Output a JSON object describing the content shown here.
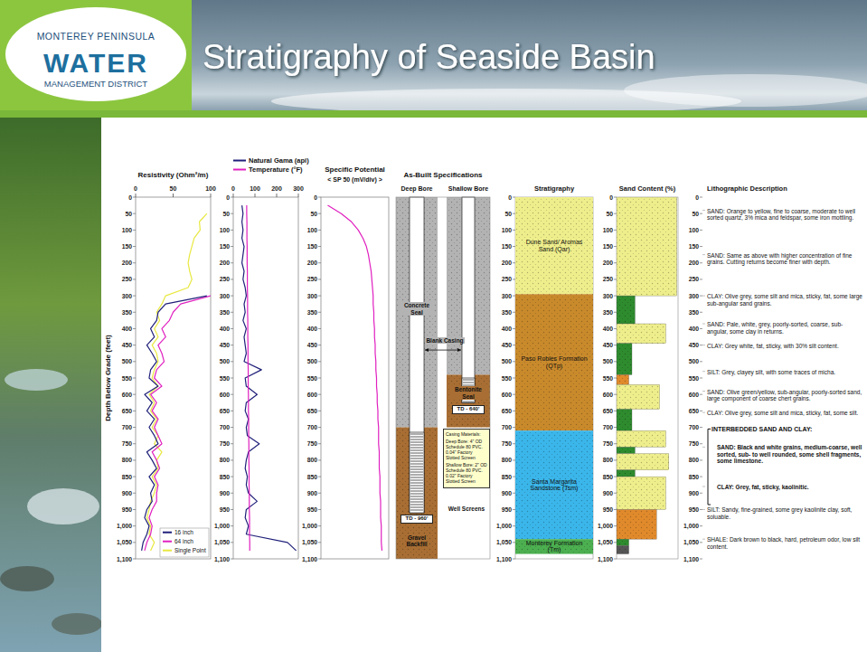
{
  "header": {
    "title": "Stratigraphy of Seaside Basin",
    "logo": [
      "MONTEREY PENINSULA",
      "WATER",
      "MANAGEMENT DISTRICT"
    ]
  },
  "chart_data": [
    {
      "type": "line",
      "title": "Resistivity (Ohm²/m)",
      "y_label": "Depth Below Grade (feet)",
      "xlim": [
        0,
        100
      ],
      "xticks": [
        0,
        50,
        100
      ],
      "ylim": [
        0,
        1100
      ],
      "yticks": [
        0,
        50,
        100,
        150,
        200,
        250,
        300,
        350,
        400,
        450,
        500,
        550,
        600,
        650,
        700,
        750,
        800,
        850,
        900,
        950,
        {
          "value": 1000,
          "label": "1,000"
        },
        {
          "value": 1050,
          "label": "1,050"
        },
        {
          "value": 1100,
          "label": "1,100"
        }
      ],
      "y": [
        25,
        50,
        75,
        100,
        125,
        150,
        175,
        200,
        225,
        250,
        275,
        300,
        325,
        350,
        375,
        400,
        425,
        450,
        475,
        500,
        525,
        550,
        575,
        600,
        625,
        650,
        675,
        700,
        725,
        750,
        775,
        800,
        825,
        850,
        875,
        900,
        925,
        950,
        975,
        1000,
        1025,
        1050,
        1075
      ],
      "series": [
        {
          "name": "16 inch",
          "color": "#1f1f7a",
          "values": [
            null,
            null,
            null,
            null,
            null,
            null,
            null,
            null,
            null,
            null,
            null,
            95,
            40,
            30,
            28,
            20,
            25,
            15,
            22,
            28,
            20,
            18,
            30,
            12,
            22,
            15,
            25,
            18,
            25,
            30,
            15,
            22,
            28,
            18,
            25,
            20,
            22,
            15,
            12,
            18,
            15,
            10,
            8
          ]
        },
        {
          "name": "64 inch",
          "color": "#e020c0",
          "values": [
            null,
            null,
            null,
            null,
            null,
            null,
            null,
            null,
            null,
            null,
            null,
            100,
            60,
            50,
            45,
            35,
            40,
            30,
            35,
            38,
            28,
            25,
            35,
            20,
            28,
            22,
            30,
            25,
            30,
            35,
            22,
            28,
            32,
            25,
            30,
            28,
            28,
            22,
            18,
            22,
            20,
            15,
            12
          ]
        },
        {
          "name": "Single Point",
          "color": "#e8e840",
          "values": [
            null,
            95,
            85,
            86,
            78,
            75,
            72,
            70,
            72,
            75,
            70,
            40,
            35,
            28,
            32,
            25,
            30,
            22,
            28,
            30,
            25,
            22,
            30,
            18,
            25,
            20,
            28,
            22,
            30,
            25,
            35,
            28,
            30,
            22,
            28,
            25,
            20,
            18,
            15,
            20,
            18,
            25,
            20
          ]
        }
      ],
      "legend": "lower right"
    },
    {
      "type": "line",
      "xlim": [
        0,
        300
      ],
      "xticks": [
        0,
        100,
        200,
        300
      ],
      "ylim": [
        0,
        1100
      ],
      "yticks": [
        0,
        50,
        100,
        150,
        200,
        250,
        300,
        350,
        400,
        450,
        500,
        550,
        600,
        650,
        700,
        750,
        800,
        850,
        900,
        950,
        {
          "value": 1000,
          "label": "1,000"
        },
        {
          "value": 1050,
          "label": "1,050"
        },
        {
          "value": 1100,
          "label": "1,100"
        }
      ],
      "y": [
        25,
        50,
        75,
        100,
        125,
        150,
        175,
        200,
        225,
        250,
        275,
        300,
        325,
        350,
        375,
        400,
        425,
        450,
        475,
        500,
        525,
        550,
        575,
        600,
        625,
        650,
        675,
        700,
        725,
        750,
        775,
        800,
        825,
        850,
        875,
        900,
        925,
        950,
        975,
        1000,
        1025,
        1050,
        1075
      ],
      "series": [
        {
          "name": "Natural Gama (api)",
          "color": "#1f1f7a",
          "values": [
            40,
            45,
            40,
            45,
            40,
            50,
            45,
            40,
            50,
            45,
            55,
            60,
            50,
            55,
            45,
            60,
            50,
            55,
            60,
            50,
            130,
            55,
            60,
            110,
            60,
            55,
            70,
            60,
            65,
            120,
            70,
            60,
            55,
            65,
            60,
            70,
            110,
            60,
            55,
            70,
            60,
            250,
            290
          ]
        },
        {
          "name": "Temperature (°F)",
          "color": "#e020c0",
          "values": [
            62,
            62,
            63,
            63,
            63,
            64,
            64,
            64,
            65,
            65,
            65,
            66,
            66,
            66,
            67,
            67,
            67,
            68,
            68,
            68,
            69,
            69,
            69,
            70,
            70,
            70,
            71,
            71,
            71,
            72,
            72,
            72,
            73,
            73,
            73,
            74,
            74,
            74,
            75,
            75,
            75,
            76,
            76
          ]
        }
      ],
      "legend": "top"
    },
    {
      "type": "line",
      "title": "Specific Potential",
      "subtitle": "< SP 50 (mV/div) >",
      "xlim": [
        0,
        100
      ],
      "ylim": [
        0,
        1100
      ],
      "tick_labels": "y",
      "yticks": [
        0,
        50,
        100,
        150,
        200,
        250,
        300,
        350,
        400,
        450,
        500,
        550,
        600,
        650,
        700,
        750,
        800,
        850,
        900,
        950,
        {
          "value": 1000,
          "label": "1,000"
        },
        {
          "value": 1050,
          "label": "1,050"
        },
        {
          "value": 1100,
          "label": "1,100"
        }
      ],
      "y": [
        25,
        50,
        75,
        100,
        125,
        150,
        175,
        200,
        225,
        250,
        275,
        300,
        325,
        350,
        375,
        400,
        425,
        450,
        475,
        500,
        525,
        550,
        575,
        600,
        625,
        650,
        675,
        700,
        725,
        750,
        775,
        800,
        825,
        850,
        875,
        900,
        925,
        950,
        975,
        1000,
        1025,
        1050,
        1075
      ],
      "series": [
        {
          "color": "#e020c0",
          "values": [
            10,
            30,
            45,
            55,
            62,
            67,
            70,
            72,
            74,
            75,
            76,
            77,
            77,
            78,
            78,
            79,
            79,
            80,
            80,
            81,
            81,
            82,
            82,
            83,
            83,
            84,
            84,
            85,
            85,
            85,
            86,
            86,
            86,
            87,
            87,
            87,
            88,
            88,
            88,
            89,
            89,
            89,
            90
          ]
        }
      ]
    }
  ],
  "as_built": {
    "title": "As-Built Specifications",
    "deep_bore": {
      "label": "Deep Bore",
      "seal": [
        0,
        700
      ],
      "seal_label": "Concrete Seal",
      "casing_label": "Blank Casing",
      "screen": [
        715,
        960
      ],
      "screen_label": "Well Screens",
      "td_label": "TD - 960'",
      "backfill": [
        700,
        1100
      ],
      "backfill_label": "Gravel Backfill"
    },
    "shallow_bore": {
      "label": "Shallow Bore",
      "seal": [
        0,
        540
      ],
      "bentonite": [
        540,
        700
      ],
      "bentonite_label": "Bentonite Seal",
      "screen": [
        550,
        625
      ],
      "td_label": "TD - 640'"
    },
    "casing_materials": [
      "Casing Materials:",
      "Deep Bore: 4\" OD Schedule 80 PVC. 0.04\" Factory Slotted Screen",
      "Shallow Bore: 2\" OD Schedule 80 PVC. 0.02\" Factory Slotted Screen"
    ]
  },
  "stratigraphy": {
    "title": "Stratigraphy",
    "units": [
      {
        "name": "Dune Sand/ Aromas Sand (Qar)",
        "top": 0,
        "bottom": 295,
        "color": "#eeee8c"
      },
      {
        "name": "Paso Robles Formation (QTp)",
        "top": 295,
        "bottom": 710,
        "color": "#c98a2c"
      },
      {
        "name": "Santa Margarita Sandstone (Tsm)",
        "top": 710,
        "bottom": 1040,
        "color": "#3bb6ea"
      },
      {
        "name": "Monterey Formation (Tm)",
        "top": 1040,
        "bottom": 1085,
        "color": "#4caf50"
      }
    ]
  },
  "sand_content": {
    "title": "Sand Content (%)",
    "xlim": [
      0,
      100
    ],
    "tops": [
      0,
      300,
      385,
      445,
      540,
      570,
      645,
      710,
      760,
      780,
      830,
      850,
      950,
      1040,
      1060
    ],
    "bottoms": [
      300,
      385,
      445,
      540,
      570,
      645,
      710,
      760,
      780,
      830,
      850,
      950,
      1040,
      1060,
      1085
    ],
    "values": [
      98,
      30,
      80,
      25,
      20,
      70,
      25,
      80,
      30,
      85,
      30,
      80,
      65,
      20,
      20
    ],
    "colors": [
      "#eeee8c",
      "#2e8b2e",
      "#eeee8c",
      "#2e8b2e",
      "#e08a2c",
      "#eeee8c",
      "#2e8b2e",
      "#eeee8c",
      "#2e8b2e",
      "#eeee8c",
      "#2e8b2e",
      "#eeee8c",
      "#e08a2c",
      "#2e8b2e",
      "#555555"
    ]
  },
  "lithology": {
    "title": "Lithographic Description",
    "entries": [
      {
        "depth": 40,
        "text": "SAND: Orange to yellow, fine to coarse, moderate to well sorted quartz, 3% mica and feldspar, some iron mottling."
      },
      {
        "depth": 175,
        "text": "SAND: Same as above with higher concentration of fine grains. Cutting returns become finer with depth."
      },
      {
        "depth": 300,
        "text": "CLAY: Olive grey, some silt and mica, sticky, fat, some large sub-angular sand grains."
      },
      {
        "depth": 385,
        "text": "SAND: Pale, white, grey, poorly-sorted, coarse, sub-angular, some clay in returns."
      },
      {
        "depth": 450,
        "text": "CLAY: Grey white, fat, sticky, with 30% silt content."
      },
      {
        "depth": 530,
        "text": "SILT: Grey, clayey silt, with some traces of micha."
      },
      {
        "depth": 590,
        "text": "SAND: Olive green/yellow, sub-angular, poorly-sorted sand, large component of coarse chert grains."
      },
      {
        "depth": 655,
        "text": "CLAY: Olive grey, some silt and mica, sticky, fat, some silt."
      },
      {
        "depth": 950,
        "text": "SILT: Sandy, fine-grained, some grey kaolinite clay, soft, soluable."
      },
      {
        "depth": 1040,
        "text": "SHALE: Dark brown to black, hard, petroleum odor, low silt content."
      }
    ],
    "group": {
      "label": "INTERBEDDED SAND AND CLAY:",
      "top": 705,
      "bottom": 935,
      "entries": [
        {
          "depth": 760,
          "text": "SAND: Black and white grains, medium-coarse, well sorted, sub- to well rounded, some shell fragments, some limestone."
        },
        {
          "depth": 880,
          "text": "CLAY: Grey, fat, sticky, kaolinitic."
        }
      ]
    }
  }
}
